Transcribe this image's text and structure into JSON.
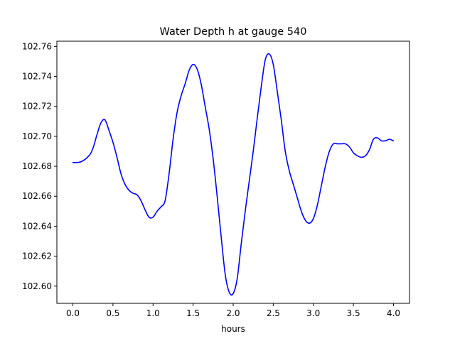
{
  "chart_data": {
    "type": "line",
    "title": "Water Depth h at gauge 540",
    "xlabel": "hours",
    "ylabel": "",
    "xlim": [
      -0.2,
      4.2
    ],
    "ylim": [
      102.5885,
      102.7635
    ],
    "x_ticks": [
      0.0,
      0.5,
      1.0,
      1.5,
      2.0,
      2.5,
      3.0,
      3.5,
      4.0
    ],
    "x_tick_labels": [
      "0.0",
      "0.5",
      "1.0",
      "1.5",
      "2.0",
      "2.5",
      "3.0",
      "3.5",
      "4.0"
    ],
    "y_ticks": [
      102.6,
      102.62,
      102.64,
      102.66,
      102.68,
      102.7,
      102.72,
      102.74,
      102.76
    ],
    "y_tick_labels": [
      "102.60",
      "102.62",
      "102.64",
      "102.66",
      "102.68",
      "102.70",
      "102.72",
      "102.74",
      "102.76"
    ],
    "grid": false,
    "legend": "none",
    "series": [
      {
        "color": "#0000ff",
        "x": [
          0.0,
          0.1,
          0.2,
          0.25,
          0.3,
          0.35,
          0.4,
          0.45,
          0.5,
          0.55,
          0.6,
          0.65,
          0.7,
          0.75,
          0.8,
          0.85,
          0.9,
          0.95,
          1.0,
          1.05,
          1.1,
          1.15,
          1.2,
          1.25,
          1.3,
          1.35,
          1.4,
          1.45,
          1.5,
          1.55,
          1.6,
          1.65,
          1.7,
          1.75,
          1.8,
          1.85,
          1.9,
          1.95,
          2.0,
          2.05,
          2.1,
          2.15,
          2.2,
          2.25,
          2.3,
          2.35,
          2.4,
          2.45,
          2.5,
          2.55,
          2.6,
          2.65,
          2.7,
          2.75,
          2.8,
          2.85,
          2.9,
          2.95,
          3.0,
          3.05,
          3.1,
          3.15,
          3.2,
          3.25,
          3.3,
          3.35,
          3.4,
          3.45,
          3.5,
          3.55,
          3.6,
          3.65,
          3.7,
          3.75,
          3.8,
          3.85,
          3.9,
          3.95,
          4.0
        ],
        "y": [
          102.6825,
          102.683,
          102.687,
          102.692,
          102.701,
          102.709,
          102.711,
          102.704,
          102.696,
          102.686,
          102.675,
          102.668,
          102.664,
          102.662,
          102.661,
          102.657,
          102.651,
          102.646,
          102.646,
          102.65,
          102.653,
          102.657,
          102.675,
          102.698,
          102.716,
          102.727,
          102.735,
          102.744,
          102.748,
          102.745,
          102.735,
          102.72,
          102.705,
          102.685,
          102.66,
          102.633,
          102.608,
          102.596,
          102.595,
          102.605,
          102.628,
          102.65,
          102.67,
          102.69,
          102.712,
          102.733,
          102.751,
          102.755,
          102.748,
          102.73,
          102.711,
          102.69,
          102.677,
          102.668,
          102.659,
          102.65,
          102.644,
          102.642,
          102.645,
          102.654,
          102.667,
          102.68,
          102.69,
          102.695,
          102.695,
          102.695,
          102.695,
          102.693,
          102.689,
          102.687,
          102.686,
          102.687,
          102.691,
          102.698,
          102.699,
          102.697,
          102.697,
          102.698,
          102.697
        ]
      }
    ]
  }
}
